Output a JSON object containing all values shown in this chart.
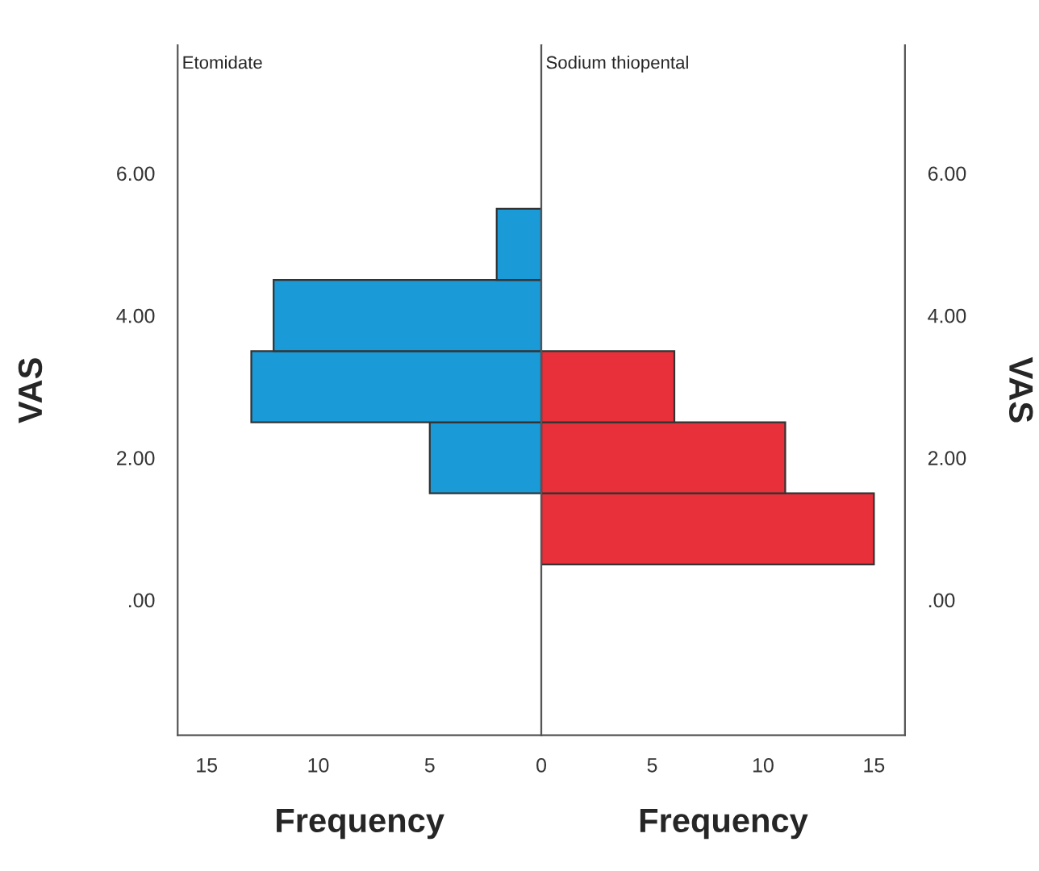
{
  "chart_data": [
    {
      "type": "bar",
      "orientation": "horizontal",
      "title": "Etomidate",
      "xlabel": "Frequency",
      "ylabel": "VAS",
      "x": [
        2,
        3,
        4,
        5
      ],
      "values": [
        5,
        13,
        12,
        2
      ],
      "color": "#1a9ad6",
      "xlim": [
        16.3,
        0
      ],
      "xticks": [
        15,
        10,
        5
      ],
      "ylim": [
        -1.9,
        7.8
      ],
      "yticks": [
        {
          "value": 0,
          "label": ".00"
        },
        {
          "value": 2,
          "label": "2.00"
        },
        {
          "value": 4,
          "label": "4.00"
        },
        {
          "value": 6,
          "label": "6.00"
        }
      ],
      "grid": false
    },
    {
      "type": "bar",
      "orientation": "horizontal",
      "title": "Sodium thiopental",
      "xlabel": "Frequency",
      "ylabel": "VAS",
      "x": [
        1,
        2,
        3
      ],
      "values": [
        15,
        11,
        6
      ],
      "color": "#e8303a",
      "xlim": [
        0,
        16.4
      ],
      "xticks": [
        0,
        5,
        10,
        15
      ],
      "ylim": [
        -1.9,
        7.8
      ],
      "yticks": [
        {
          "value": 0,
          "label": ".00"
        },
        {
          "value": 2,
          "label": "2.00"
        },
        {
          "value": 4,
          "label": "4.00"
        },
        {
          "value": 6,
          "label": "6.00"
        }
      ],
      "grid": false
    }
  ]
}
